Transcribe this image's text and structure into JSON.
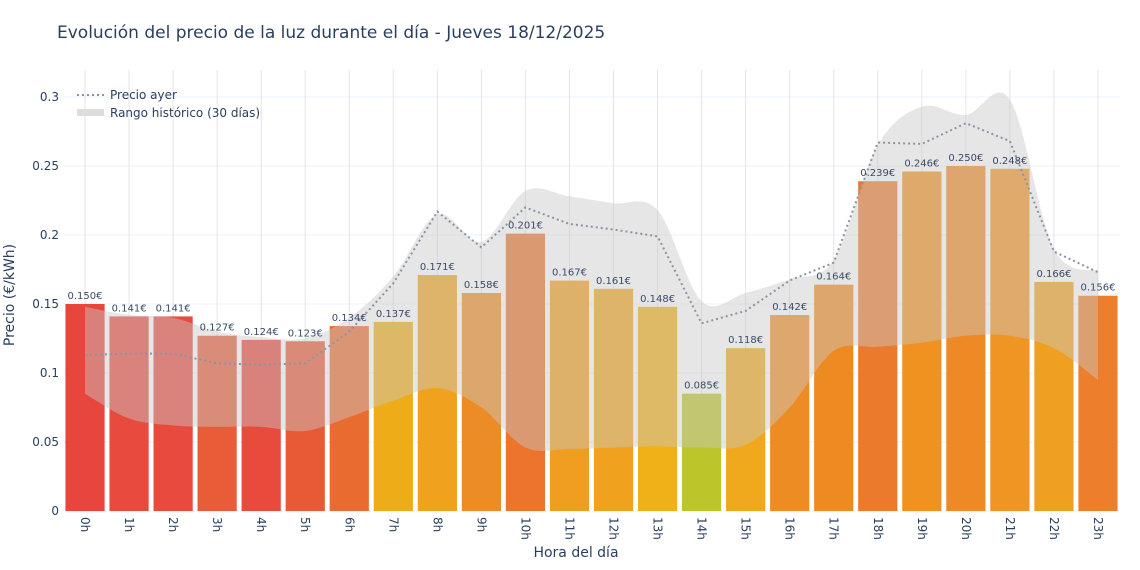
{
  "chart_data": {
    "type": "bar",
    "title": "Evolución del precio de la luz durante el día - Jueves 18/12/2025",
    "xlabel": "Hora del día",
    "ylabel": "Precio (€/kWh)",
    "ylim": [
      0,
      0.315
    ],
    "yticks": [
      0,
      0.05,
      0.1,
      0.15,
      0.2,
      0.25,
      0.3
    ],
    "ytick_labels": [
      "0",
      "0.05",
      "0.1",
      "0.15",
      "0.2",
      "0.25",
      "0.3"
    ],
    "grid": true,
    "legend_position": "top-left",
    "categories": [
      "0h",
      "1h",
      "2h",
      "3h",
      "4h",
      "5h",
      "6h",
      "7h",
      "8h",
      "9h",
      "10h",
      "11h",
      "12h",
      "13h",
      "14h",
      "15h",
      "16h",
      "17h",
      "18h",
      "19h",
      "20h",
      "21h",
      "22h",
      "23h"
    ],
    "values": [
      0.15,
      0.141,
      0.141,
      0.127,
      0.124,
      0.123,
      0.134,
      0.137,
      0.171,
      0.158,
      0.201,
      0.167,
      0.161,
      0.148,
      0.085,
      0.118,
      0.142,
      0.164,
      0.239,
      0.246,
      0.25,
      0.248,
      0.166,
      0.156
    ],
    "value_labels": [
      "0.150€",
      "0.141€",
      "0.141€",
      "0.127€",
      "0.124€",
      "0.123€",
      "0.134€",
      "0.137€",
      "0.171€",
      "0.158€",
      "0.201€",
      "0.167€",
      "0.161€",
      "0.148€",
      "0.085€",
      "0.118€",
      "0.142€",
      "0.164€",
      "0.239€",
      "0.246€",
      "0.250€",
      "0.248€",
      "0.166€",
      "0.156€"
    ],
    "bar_colors": [
      "#e8453c",
      "#e84b3e",
      "#e84b3e",
      "#e85c38",
      "#e84a3c",
      "#e85a36",
      "#e86c30",
      "#eeac18",
      "#f0a21e",
      "#ec8c24",
      "#ec742c",
      "#f09e20",
      "#f0a21e",
      "#f0b018",
      "#bcc62a",
      "#f0a81c",
      "#ee8c24",
      "#ee8a22",
      "#ec7a2c",
      "#f0921f",
      "#ee8a26",
      "#f09424",
      "#f0a020",
      "#ec7e2c"
    ],
    "series": [
      {
        "name": "Precio ayer",
        "type": "line",
        "style": "dotted",
        "color": "#8a94a6",
        "values": [
          0.113,
          0.114,
          0.114,
          0.107,
          0.106,
          0.107,
          0.13,
          0.165,
          0.217,
          0.191,
          0.22,
          0.208,
          0.204,
          0.199,
          0.136,
          0.145,
          0.167,
          0.18,
          0.267,
          0.266,
          0.281,
          0.268,
          0.188,
          0.173
        ]
      },
      {
        "name": "Rango histórico (30 días)",
        "type": "area-band",
        "color": "#c8c8c8",
        "lower": [
          0.085,
          0.067,
          0.062,
          0.061,
          0.061,
          0.058,
          0.068,
          0.08,
          0.089,
          0.075,
          0.046,
          0.045,
          0.046,
          0.047,
          0.046,
          0.048,
          0.075,
          0.116,
          0.119,
          0.122,
          0.127,
          0.127,
          0.118,
          0.095
        ],
        "upper": [
          0.148,
          0.142,
          0.14,
          0.13,
          0.126,
          0.125,
          0.14,
          0.17,
          0.215,
          0.195,
          0.232,
          0.228,
          0.223,
          0.218,
          0.152,
          0.158,
          0.168,
          0.182,
          0.265,
          0.293,
          0.287,
          0.298,
          0.19,
          0.174
        ]
      }
    ]
  }
}
